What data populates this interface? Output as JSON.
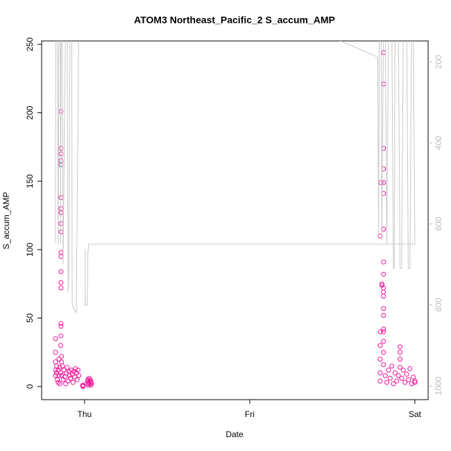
{
  "chart_data": {
    "type": "scatter",
    "title": "ATOM3 Northeast_Pacific_2 S_accum_AMP",
    "x_label": "Date",
    "y_label": "S_accum_AMP",
    "xlim": [
      -0.26,
      2.08
    ],
    "xticks": [
      {
        "value": 0,
        "label": "Thu"
      },
      {
        "value": 1,
        "label": "Fri"
      },
      {
        "value": 2,
        "label": "Sat"
      }
    ],
    "ylim": [
      -9.6,
      252.5
    ],
    "yticks": [
      0,
      50,
      100,
      150,
      200,
      250
    ],
    "y2lim": [
      1034,
      148
    ],
    "y2ticks": [
      200,
      400,
      600,
      800,
      1000
    ],
    "series": [
      {
        "type": "scatter",
        "color": "#f0149a",
        "x": [
          -0.176,
          -0.176,
          -0.176,
          -0.176,
          -0.176,
          -0.17,
          -0.17,
          -0.165,
          -0.16,
          -0.16,
          -0.155,
          -0.155,
          -0.15,
          -0.15,
          -0.145,
          -0.145,
          -0.143,
          -0.143,
          -0.143,
          -0.143,
          -0.143,
          -0.143,
          -0.143,
          -0.143,
          -0.143,
          -0.143,
          -0.143,
          -0.143,
          -0.143,
          -0.143,
          -0.143,
          -0.143,
          -0.143,
          -0.143,
          -0.14,
          -0.14,
          -0.138,
          -0.135,
          -0.13,
          -0.125,
          -0.12,
          -0.115,
          -0.11,
          -0.105,
          -0.1,
          -0.095,
          -0.09,
          -0.085,
          -0.08,
          -0.075,
          -0.07,
          -0.065,
          -0.06,
          -0.055,
          -0.05,
          -0.045,
          -0.04,
          -0.035,
          -0.01,
          -0.01,
          -0.012,
          0.015,
          0.018,
          0.02,
          0.022,
          0.025,
          0.027,
          0.03,
          0.032,
          0.035,
          0.038,
          0.04,
          0.042,
          1.79,
          1.79,
          1.79,
          1.79,
          1.79,
          1.795,
          1.79,
          1.8,
          1.8,
          1.81,
          1.81,
          1.81,
          1.81,
          1.81,
          1.81,
          1.81,
          1.81,
          1.81,
          1.81,
          1.81,
          1.81,
          1.81,
          1.81,
          1.81,
          1.81,
          1.81,
          1.81,
          1.81,
          1.82,
          1.83,
          1.84,
          1.85,
          1.86,
          1.87,
          1.88,
          1.89,
          1.9,
          1.91,
          1.91,
          1.91,
          1.91,
          1.92,
          1.93,
          1.94,
          1.95,
          1.96,
          1.97,
          1.98,
          1.99,
          2.0,
          2.0
        ],
        "values": [
          35,
          25,
          18,
          12,
          8,
          15,
          10,
          5,
          12,
          3,
          20,
          8,
          14,
          2,
          30,
          10,
          201,
          174,
          170,
          165,
          162,
          138,
          130,
          127,
          119,
          113,
          98,
          95,
          84,
          76,
          72,
          46,
          44,
          37,
          22,
          18,
          8,
          15,
          5,
          12,
          7,
          2,
          10,
          14,
          4,
          11,
          8,
          6,
          12,
          9,
          3,
          11,
          7,
          13,
          10,
          5,
          12,
          8,
          1,
          0,
          0.5,
          2,
          4,
          5,
          1,
          3,
          6,
          2,
          4,
          5,
          1,
          3,
          2,
          40,
          30,
          20,
          10,
          4,
          149,
          110,
          75,
          74,
          244,
          221,
          174,
          159,
          149,
          141,
          115,
          91,
          82,
          72,
          69,
          66,
          57,
          52,
          42,
          40,
          33,
          25,
          16,
          8,
          3,
          12,
          6,
          15,
          2,
          10,
          4,
          8,
          29,
          25,
          20,
          14,
          6,
          12,
          3,
          9,
          5,
          13,
          2,
          7,
          4,
          3
        ]
      },
      {
        "type": "line",
        "axis": "y2",
        "color": "#c8c8c8",
        "x": [
          -0.176,
          -0.176,
          -0.175,
          -0.165,
          -0.16,
          -0.155,
          -0.147,
          -0.145,
          -0.142,
          -0.135,
          -0.13,
          -0.115,
          -0.105,
          -0.1,
          -0.095,
          -0.088,
          -0.078,
          -0.075,
          -0.055,
          -0.05,
          -0.035,
          null,
          0.004,
          0.004,
          0.016,
          0.02,
          0.025,
          2.0,
          null,
          1.28,
          1.775,
          1.78,
          1.785,
          1.795,
          1.8,
          1.81,
          1.82,
          1.83,
          1.84,
          1.86,
          1.87,
          1.875,
          1.88,
          1.9,
          1.91,
          1.92,
          1.93,
          1.95,
          1.96,
          1.97,
          1.98,
          1.99,
          2.0
        ],
        "values": [
          600,
          647,
          100,
          100,
          650,
          100,
          100,
          650,
          100,
          100,
          700,
          100,
          100,
          767,
          720,
          100,
          100,
          800,
          818,
          818,
          100,
          null,
          664,
          801,
          801,
          673,
          650,
          650,
          null,
          100,
          188,
          630,
          100,
          100,
          640,
          100,
          100,
          650,
          100,
          100,
          710,
          710,
          100,
          100,
          710,
          710,
          100,
          100,
          710,
          710,
          100,
          100,
          650
        ]
      }
    ]
  }
}
